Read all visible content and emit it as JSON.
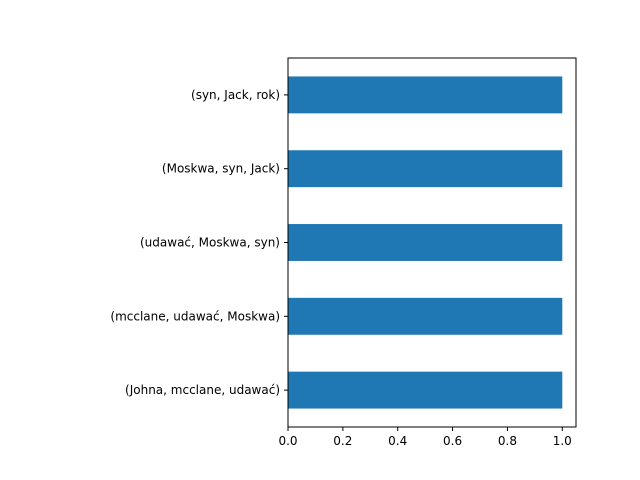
{
  "chart_data": {
    "type": "bar",
    "orientation": "horizontal",
    "categories": [
      "(Johna, mcclane, udawać)",
      "(mcclane, udawać, Moskwa)",
      "(udawać, Moskwa, syn)",
      "(Moskwa, syn, Jack)",
      "(syn, Jack, rok)"
    ],
    "values": [
      1,
      1,
      1,
      1,
      1
    ],
    "title": "",
    "xlabel": "",
    "ylabel": "",
    "xlim": [
      0,
      1.05
    ],
    "xticks": [
      "0.0",
      "0.2",
      "0.4",
      "0.6",
      "0.8",
      "1.0"
    ],
    "grid": false,
    "colors": {
      "bar": "#1f77b4"
    }
  }
}
